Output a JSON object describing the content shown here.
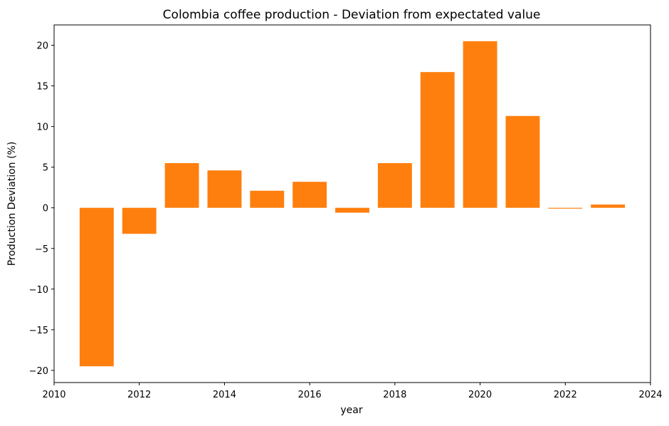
{
  "chart_data": {
    "type": "bar",
    "title": "Colombia coffee production - Deviation from expectated value",
    "xlabel": "year",
    "ylabel": "Production Deviation (%)",
    "x": [
      2011,
      2012,
      2013,
      2014,
      2015,
      2016,
      2017,
      2018,
      2019,
      2020,
      2021,
      2022,
      2023
    ],
    "values": [
      -19.5,
      -3.2,
      5.5,
      4.6,
      2.1,
      3.2,
      -0.6,
      5.5,
      16.7,
      20.5,
      11.3,
      -0.1,
      0.4
    ],
    "bar_width": 0.8,
    "xlim": [
      2010,
      2024
    ],
    "ylim": [
      -21.5,
      22.5
    ],
    "xticks": [
      2010,
      2012,
      2014,
      2016,
      2018,
      2020,
      2022,
      2024
    ],
    "xtick_labels": [
      "2010",
      "2012",
      "2014",
      "2016",
      "2018",
      "2020",
      "2022",
      "2024"
    ],
    "yticks": [
      -20,
      -15,
      -10,
      -5,
      0,
      5,
      10,
      15,
      20
    ],
    "ytick_labels": [
      "−20",
      "−15",
      "−10",
      "−5",
      "0",
      "5",
      "10",
      "15",
      "20"
    ],
    "bar_color": "#ff7f0e",
    "grid": false,
    "legend": "none"
  }
}
